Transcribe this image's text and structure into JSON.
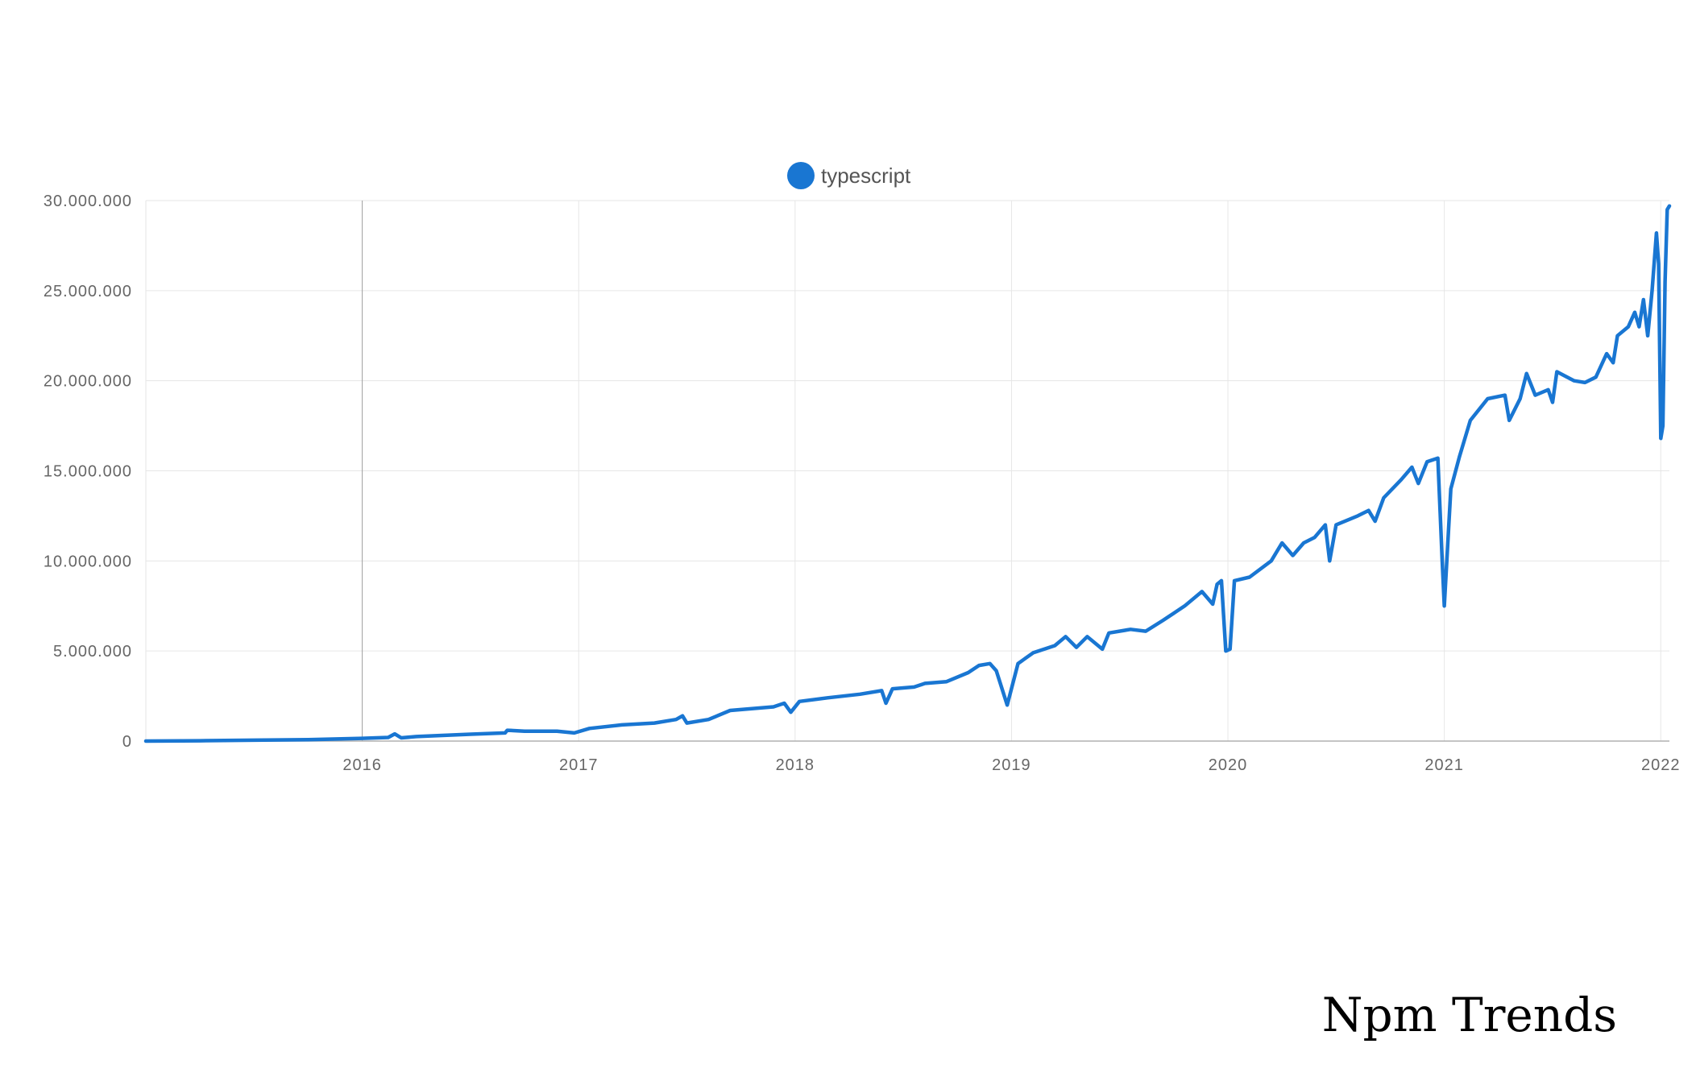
{
  "watermark": "Npm Trends",
  "chart_data": {
    "type": "line",
    "title": "",
    "xlabel": "",
    "ylabel": "",
    "legend_position": "top-center",
    "grid": true,
    "color": "#1976d2",
    "xlim": [
      2015.0,
      2022.04
    ],
    "ylim": [
      0,
      30000000
    ],
    "y_ticks": [
      {
        "value": 0,
        "label": "0"
      },
      {
        "value": 5000000,
        "label": "5.000.000"
      },
      {
        "value": 10000000,
        "label": "10.000.000"
      },
      {
        "value": 15000000,
        "label": "15.000.000"
      },
      {
        "value": 20000000,
        "label": "20.000.000"
      },
      {
        "value": 25000000,
        "label": "25.000.000"
      },
      {
        "value": 30000000,
        "label": "30.000.000"
      }
    ],
    "x_ticks": [
      {
        "value": 2016,
        "label": "2016"
      },
      {
        "value": 2017,
        "label": "2017"
      },
      {
        "value": 2018,
        "label": "2018"
      },
      {
        "value": 2019,
        "label": "2019"
      },
      {
        "value": 2020,
        "label": "2020"
      },
      {
        "value": 2021,
        "label": "2021"
      },
      {
        "value": 2022,
        "label": "2022"
      }
    ],
    "series": [
      {
        "name": "typescript",
        "points": [
          [
            2015.0,
            0
          ],
          [
            2015.25,
            20000
          ],
          [
            2015.5,
            50000
          ],
          [
            2015.75,
            80000
          ],
          [
            2016.0,
            150000
          ],
          [
            2016.12,
            200000
          ],
          [
            2016.15,
            400000
          ],
          [
            2016.18,
            180000
          ],
          [
            2016.25,
            250000
          ],
          [
            2016.5,
            380000
          ],
          [
            2016.66,
            450000
          ],
          [
            2016.67,
            600000
          ],
          [
            2016.75,
            550000
          ],
          [
            2016.9,
            550000
          ],
          [
            2016.98,
            450000
          ],
          [
            2017.05,
            700000
          ],
          [
            2017.2,
            900000
          ],
          [
            2017.35,
            1000000
          ],
          [
            2017.45,
            1200000
          ],
          [
            2017.48,
            1400000
          ],
          [
            2017.5,
            1000000
          ],
          [
            2017.6,
            1200000
          ],
          [
            2017.7,
            1700000
          ],
          [
            2017.8,
            1800000
          ],
          [
            2017.9,
            1900000
          ],
          [
            2017.95,
            2100000
          ],
          [
            2017.98,
            1600000
          ],
          [
            2018.02,
            2200000
          ],
          [
            2018.15,
            2400000
          ],
          [
            2018.3,
            2600000
          ],
          [
            2018.4,
            2800000
          ],
          [
            2018.42,
            2100000
          ],
          [
            2018.45,
            2900000
          ],
          [
            2018.55,
            3000000
          ],
          [
            2018.6,
            3200000
          ],
          [
            2018.7,
            3300000
          ],
          [
            2018.8,
            3800000
          ],
          [
            2018.85,
            4200000
          ],
          [
            2018.9,
            4300000
          ],
          [
            2018.93,
            3900000
          ],
          [
            2018.98,
            2000000
          ],
          [
            2019.03,
            4300000
          ],
          [
            2019.1,
            4900000
          ],
          [
            2019.2,
            5300000
          ],
          [
            2019.25,
            5800000
          ],
          [
            2019.3,
            5200000
          ],
          [
            2019.35,
            5800000
          ],
          [
            2019.42,
            5100000
          ],
          [
            2019.45,
            6000000
          ],
          [
            2019.55,
            6200000
          ],
          [
            2019.62,
            6100000
          ],
          [
            2019.7,
            6700000
          ],
          [
            2019.75,
            7100000
          ],
          [
            2019.8,
            7500000
          ],
          [
            2019.88,
            8300000
          ],
          [
            2019.93,
            7600000
          ],
          [
            2019.95,
            8700000
          ],
          [
            2019.97,
            8900000
          ],
          [
            2019.99,
            5000000
          ],
          [
            2020.01,
            5100000
          ],
          [
            2020.03,
            8900000
          ],
          [
            2020.1,
            9100000
          ],
          [
            2020.2,
            10000000
          ],
          [
            2020.25,
            11000000
          ],
          [
            2020.3,
            10300000
          ],
          [
            2020.35,
            11000000
          ],
          [
            2020.4,
            11300000
          ],
          [
            2020.45,
            12000000
          ],
          [
            2020.47,
            10000000
          ],
          [
            2020.5,
            12000000
          ],
          [
            2020.6,
            12500000
          ],
          [
            2020.65,
            12800000
          ],
          [
            2020.68,
            12200000
          ],
          [
            2020.72,
            13500000
          ],
          [
            2020.8,
            14500000
          ],
          [
            2020.85,
            15200000
          ],
          [
            2020.88,
            14300000
          ],
          [
            2020.92,
            15500000
          ],
          [
            2020.97,
            15700000
          ],
          [
            2020.99,
            10000000
          ],
          [
            2021.0,
            7500000
          ],
          [
            2021.03,
            14000000
          ],
          [
            2021.07,
            15800000
          ],
          [
            2021.12,
            17800000
          ],
          [
            2021.2,
            19000000
          ],
          [
            2021.28,
            19200000
          ],
          [
            2021.3,
            17800000
          ],
          [
            2021.35,
            19000000
          ],
          [
            2021.38,
            20400000
          ],
          [
            2021.42,
            19200000
          ],
          [
            2021.48,
            19500000
          ],
          [
            2021.5,
            18800000
          ],
          [
            2021.52,
            20500000
          ],
          [
            2021.6,
            20000000
          ],
          [
            2021.65,
            19900000
          ],
          [
            2021.7,
            20200000
          ],
          [
            2021.75,
            21500000
          ],
          [
            2021.78,
            21000000
          ],
          [
            2021.8,
            22500000
          ],
          [
            2021.85,
            23000000
          ],
          [
            2021.88,
            23800000
          ],
          [
            2021.9,
            23000000
          ],
          [
            2021.92,
            24500000
          ],
          [
            2021.94,
            22500000
          ],
          [
            2021.96,
            25000000
          ],
          [
            2021.98,
            28200000
          ],
          [
            2021.99,
            26500000
          ],
          [
            2022.0,
            16800000
          ],
          [
            2022.01,
            17500000
          ],
          [
            2022.02,
            25500000
          ],
          [
            2022.03,
            29500000
          ],
          [
            2022.04,
            29700000
          ]
        ]
      }
    ]
  }
}
